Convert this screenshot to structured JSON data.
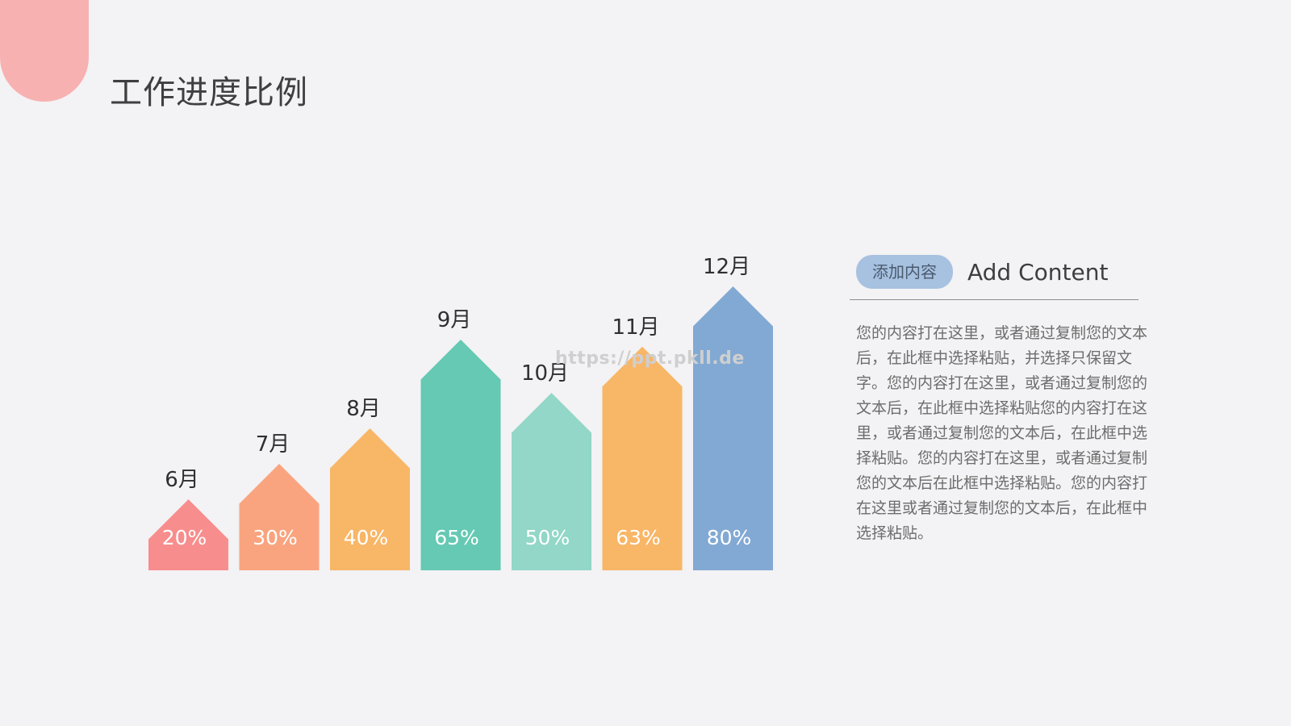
{
  "title": "工作进度比例",
  "watermark": "https://ppt.pkll.de",
  "panel": {
    "tag": "添加内容",
    "heading": "Add Content",
    "body": "您的内容打在这里，或者通过复制您的文本后，在此框中选择粘贴，并选择只保留文字。您的内容打在这里，或者通过复制您的文本后，在此框中选择粘贴您的内容打在这里，或者通过复制您的文本后，在此框中选择粘贴。您的内容打在这里，或者通过复制您的文本后在此框中选择粘贴。您的内容打在这里或者通过复制您的文本后，在此框中选择粘贴。"
  },
  "colors": {
    "corner": "#f8b1b1",
    "bars": [
      "#f88d8d",
      "#f9a47f",
      "#f8b667",
      "#65c9b3",
      "#92d7c7",
      "#f8b667",
      "#82a9d3"
    ]
  },
  "chart_data": {
    "type": "bar",
    "categories": [
      "6月",
      "7月",
      "8月",
      "9月",
      "10月",
      "11月",
      "12月"
    ],
    "values": [
      20,
      30,
      40,
      65,
      50,
      63,
      80
    ],
    "value_labels": [
      "20%",
      "30%",
      "40%",
      "65%",
      "50%",
      "63%",
      "80%"
    ],
    "unit": "%",
    "ylim": [
      0,
      80
    ],
    "grid": false,
    "legend": "none"
  }
}
